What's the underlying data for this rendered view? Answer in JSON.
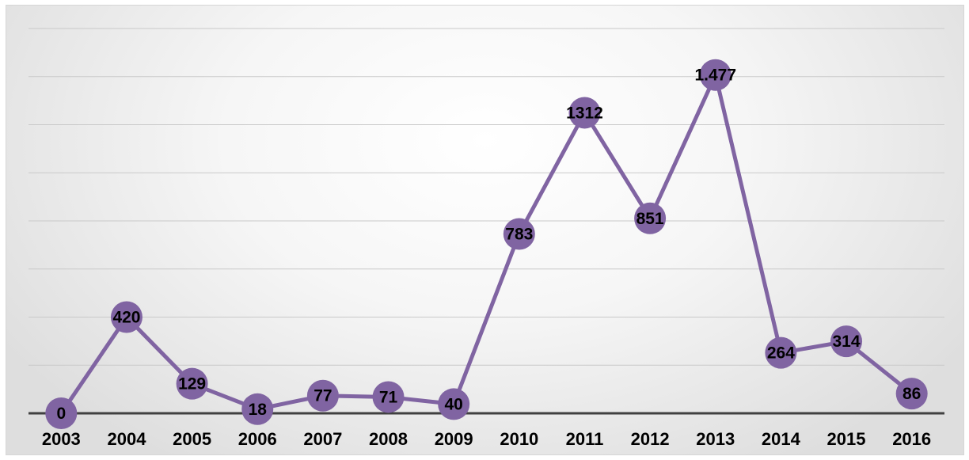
{
  "chart_data": {
    "type": "line",
    "categories": [
      "2003",
      "2004",
      "2005",
      "2006",
      "2007",
      "2008",
      "2009",
      "2010",
      "2011",
      "2012",
      "2013",
      "2014",
      "2015",
      "2016"
    ],
    "series": [
      {
        "values": [
          0,
          420,
          129,
          18,
          77,
          71,
          40,
          783,
          1312,
          851,
          1477,
          264,
          314,
          86
        ],
        "labels": [
          "0",
          "420",
          "129",
          "18",
          "77",
          "71",
          "40",
          "783",
          "1312",
          "851",
          "1.477",
          "264",
          "314",
          "86"
        ]
      }
    ],
    "ylim": [
      0,
      1680
    ],
    "grid": true,
    "legend": "none",
    "colors": {
      "line": "#8064a2",
      "marker": "#8064a2",
      "gridline": "#c9c9c9",
      "baseline": "#404040"
    }
  }
}
